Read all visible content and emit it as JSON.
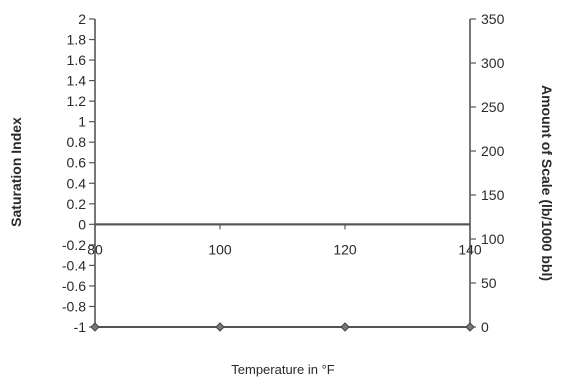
{
  "chart_data": {
    "type": "line",
    "x": [
      80,
      100,
      120,
      140
    ],
    "x_ticks": [
      "80",
      "100",
      "120",
      "140"
    ],
    "xlabel": "Temperature in °F",
    "xlim": [
      80,
      140
    ],
    "y_left": {
      "label": "Saturation Index",
      "ylim": [
        -1,
        2
      ],
      "ticks": [
        "2",
        "1.8",
        "1.6",
        "1.4",
        "1.2",
        "1",
        "0.8",
        "0.6",
        "0.4",
        "0.2",
        "0",
        "-0.2",
        "-0.4",
        "-0.6",
        "-0.8",
        "-1"
      ]
    },
    "y_right": {
      "label": "Amount of Scale (lb/1000 bbl)",
      "ylim": [
        0,
        350
      ],
      "ticks": [
        "350",
        "300",
        "250",
        "200",
        "150",
        "100",
        "50",
        "0"
      ]
    },
    "series": [
      {
        "axis": "left",
        "values": [
          0,
          0,
          0,
          0
        ],
        "color": "#555555",
        "markers": false
      },
      {
        "axis": "right",
        "values": [
          0,
          0,
          0,
          0
        ],
        "color": "#555555",
        "markers": true
      }
    ],
    "grid": false,
    "legend": "none"
  }
}
